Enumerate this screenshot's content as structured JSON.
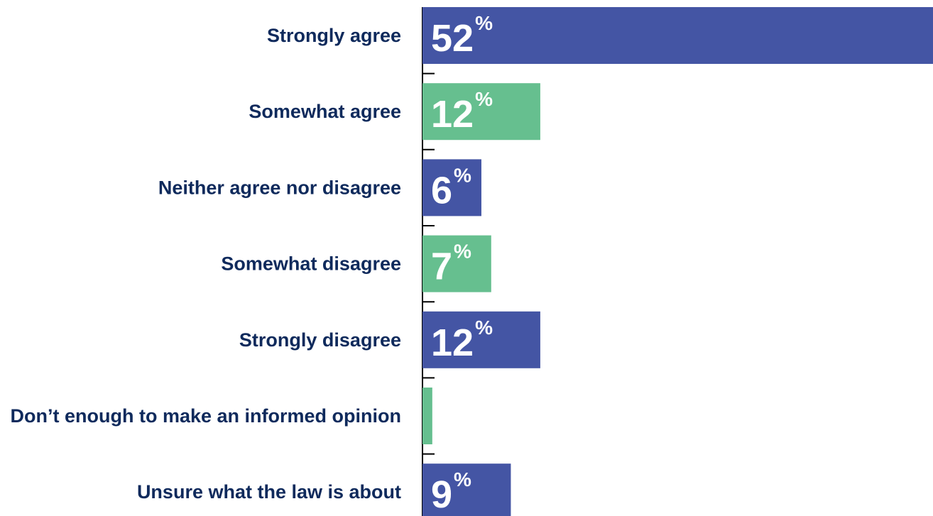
{
  "chart_data": {
    "type": "bar",
    "orientation": "horizontal",
    "categories": [
      "Strongly agree",
      "Somewhat agree",
      "Neither agree nor disagree",
      "Somewhat disagree",
      "Strongly disagree",
      "Don’t enough to make an informed opinion",
      "Unsure what the law is about"
    ],
    "values": [
      52,
      12,
      6,
      7,
      12,
      1,
      9
    ],
    "value_suffix": "%",
    "xlim": [
      0,
      52
    ],
    "grid": false,
    "legend": "none",
    "colors": [
      "#4455a4",
      "#66bf8f",
      "#4455a4",
      "#66bf8f",
      "#4455a4",
      "#66bf8f",
      "#4455a4"
    ],
    "label_color": "#0f2a5c",
    "value_label_color": "#ffffff",
    "axis_color": "#000000"
  }
}
